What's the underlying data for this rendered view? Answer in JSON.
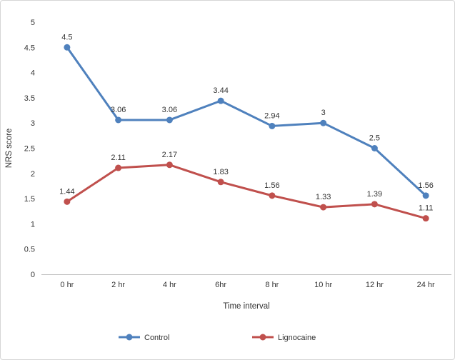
{
  "chart_data": {
    "type": "line",
    "title": "",
    "categories": [
      "0 hr",
      "2 hr",
      "4 hr",
      "6hr",
      "8 hr",
      "10 hr",
      "12 hr",
      "24 hr"
    ],
    "series": [
      {
        "name": "Control",
        "color": "#4F81BD",
        "values": [
          4.5,
          3.06,
          3.06,
          3.44,
          2.94,
          3,
          2.5,
          1.56
        ],
        "labels": [
          "4.5",
          "3.06",
          "3.06",
          "3.44",
          "2.94",
          "3",
          "2.5",
          "1.56"
        ]
      },
      {
        "name": "Lignocaine",
        "color": "#C0504D",
        "values": [
          1.44,
          2.11,
          2.17,
          1.83,
          1.56,
          1.33,
          1.39,
          1.11
        ],
        "labels": [
          "1.44",
          "2.11",
          "2.17",
          "1.83",
          "1.56",
          "1.33",
          "1.39",
          "1.11"
        ]
      }
    ],
    "xlabel": "Time interval",
    "ylabel": "NRS score",
    "ylim": [
      0,
      5
    ],
    "ytick_step": 0.5,
    "yticks": [
      "0",
      "0.5",
      "1",
      "1.5",
      "2",
      "2.5",
      "3",
      "3.5",
      "4",
      "4.5",
      "5"
    ],
    "grid": false,
    "legend_position": "bottom",
    "marker": "circle",
    "axis_color": "#BFBFBF",
    "text_color": "#333333",
    "frame_border_color": "#d6d6d6",
    "background_color": "#ffffff"
  }
}
